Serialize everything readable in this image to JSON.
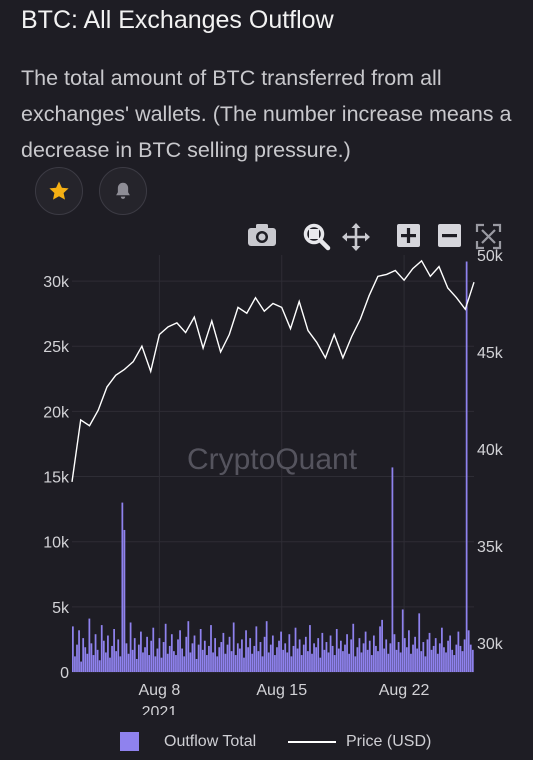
{
  "header": {
    "title": "BTC: All Exchanges Outflow",
    "description": "The total amount of BTC transferred from all exchanges' wallets. (The number increase means a decrease in BTC selling pressure.)"
  },
  "actions": {
    "star_icon": "star-icon",
    "bell_icon": "bell-icon"
  },
  "toolbar": [
    "camera-icon",
    "zoom-icon",
    "pan-icon",
    "zoom-in-icon",
    "zoom-out-icon",
    "autoscale-icon"
  ],
  "watermark": "CryptoQuant",
  "colors": {
    "outflow": "#8f82ee",
    "price": "#ffffff",
    "background": "#1e1d24",
    "grid": "#2e2d35"
  },
  "chart_data": {
    "type": "bar",
    "x_start": "2021-08-03",
    "x_end": "2021-08-26",
    "x_ticks": [
      "Aug 8",
      "Aug 15",
      "Aug 22"
    ],
    "x_ticks_dates": [
      "2021-08-08",
      "2021-08-15",
      "2021-08-22"
    ],
    "x_year_label": "2021",
    "y_left": {
      "ylim": [
        0,
        32000
      ],
      "ticks": [
        0,
        5000,
        10000,
        15000,
        20000,
        25000,
        30000
      ],
      "tick_labels": [
        "0",
        "5k",
        "10k",
        "15k",
        "20k",
        "25k",
        "30k"
      ]
    },
    "y_right": {
      "ylim": [
        28500,
        50000
      ],
      "ticks": [
        30000,
        35000,
        40000,
        45000,
        50000
      ],
      "tick_labels": [
        "30k",
        "35k",
        "40k",
        "45k",
        "50k"
      ]
    },
    "legend": [
      "Outflow Total",
      "Price (USD)"
    ],
    "legend_position": "bottom",
    "grid": true,
    "series": [
      {
        "name": "Outflow Total",
        "type": "bar",
        "axis": "left",
        "values": [
          3500,
          1200,
          2100,
          3200,
          800,
          2600,
          1900,
          1400,
          4100,
          2200,
          1300,
          2900,
          1700,
          900,
          3600,
          2400,
          1500,
          2800,
          1100,
          2000,
          3300,
          1600,
          2500,
          1200,
          13000,
          10900,
          2200,
          1400,
          3800,
          1700,
          2600,
          1000,
          2100,
          3100,
          1500,
          1900,
          2700,
          1300,
          2400,
          3400,
          1200,
          1800,
          2600,
          1100,
          2300,
          3700,
          1400,
          2000,
          2900,
          1600,
          1300,
          2500,
          3200,
          1800,
          1200,
          2700,
          3900,
          1500,
          2200,
          2800,
          1000,
          2100,
          3300,
          1700,
          2400,
          1300,
          2000,
          3600,
          1500,
          2600,
          1200,
          1900,
          2300,
          3000,
          1400,
          2100,
          2700,
          1600,
          3800,
          1300,
          2200,
          1800,
          2500,
          1100,
          3200,
          1900,
          2600,
          1400,
          2000,
          3500,
          1600,
          2300,
          1200,
          2700,
          3900,
          1500,
          2100,
          2800,
          1300,
          1900,
          2400,
          3100,
          1700,
          2200,
          1500,
          2900,
          1200,
          2000,
          3400,
          1800,
          2500,
          1300,
          2100,
          2700,
          1600,
          3600,
          1400,
          2200,
          1900,
          2600,
          1100,
          3000,
          1700,
          2300,
          1500,
          2800,
          2000,
          1300,
          3300,
          1800,
          2400,
          1600,
          2100,
          2900,
          1400,
          2500,
          3700,
          1200,
          1900,
          2600,
          1500,
          2200,
          3100,
          1700,
          2400,
          1300,
          2800,
          2000,
          1600,
          3500,
          4000,
          1800,
          2500,
          1400,
          2200,
          15700,
          2900,
          1700,
          2300,
          1500,
          4800,
          2600,
          1900,
          3200,
          1400,
          2100,
          2700,
          1800,
          4500,
          1600,
          2300,
          1200,
          2500,
          3000,
          1700,
          2000,
          2600,
          1400,
          2200,
          3400,
          1900,
          1500,
          2400,
          2800,
          1700,
          1300,
          2100,
          3100,
          2000,
          1600,
          2500,
          31500,
          3200,
          2100,
          1700
        ]
      },
      {
        "name": "Price (USD)",
        "type": "line",
        "axis": "right",
        "x": [
          "2021-08-03",
          "2021-08-03T12:00",
          "2021-08-04",
          "2021-08-04T12:00",
          "2021-08-05",
          "2021-08-05T12:00",
          "2021-08-06",
          "2021-08-06T12:00",
          "2021-08-07",
          "2021-08-07T12:00",
          "2021-08-08",
          "2021-08-08T12:00",
          "2021-08-09",
          "2021-08-09T12:00",
          "2021-08-10",
          "2021-08-10T12:00",
          "2021-08-11",
          "2021-08-11T12:00",
          "2021-08-12",
          "2021-08-12T12:00",
          "2021-08-13",
          "2021-08-13T12:00",
          "2021-08-14",
          "2021-08-14T12:00",
          "2021-08-15",
          "2021-08-15T12:00",
          "2021-08-16",
          "2021-08-16T12:00",
          "2021-08-17",
          "2021-08-17T12:00",
          "2021-08-18",
          "2021-08-18T12:00",
          "2021-08-19",
          "2021-08-19T12:00",
          "2021-08-20",
          "2021-08-20T12:00",
          "2021-08-21",
          "2021-08-21T12:00",
          "2021-08-22",
          "2021-08-22T12:00",
          "2021-08-23",
          "2021-08-23T12:00",
          "2021-08-24",
          "2021-08-24T12:00",
          "2021-08-25",
          "2021-08-25T12:00",
          "2021-08-26"
        ],
        "values": [
          38300,
          41500,
          41200,
          42000,
          43200,
          43800,
          44100,
          44500,
          45300,
          44000,
          45900,
          46300,
          46500,
          46000,
          46800,
          45200,
          46600,
          45000,
          45900,
          47300,
          47000,
          47800,
          47100,
          47500,
          47300,
          46200,
          47600,
          46100,
          45500,
          44700,
          45900,
          44700,
          45800,
          46700,
          47900,
          48900,
          49000,
          49200,
          48700,
          49300,
          49700,
          48900,
          49400,
          48300,
          47800,
          47200,
          48600
        ]
      }
    ]
  }
}
